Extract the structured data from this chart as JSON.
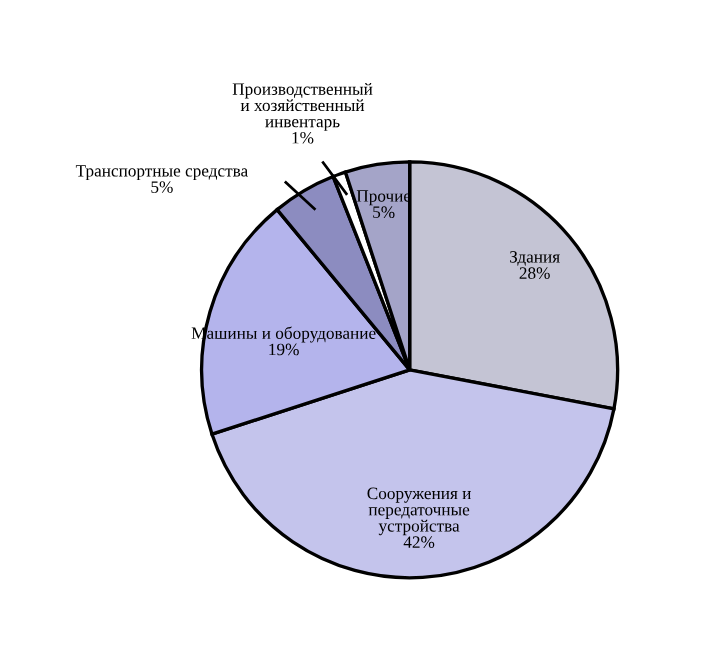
{
  "chart_data": {
    "type": "pie",
    "categories": [
      "Здания",
      "Сооружения и\nпередаточные\nустройства",
      "Машины и оборудование",
      "Транспортные средства",
      "Производственный\nи хозяйственный\nинвентарь",
      "Прочие"
    ],
    "values": [
      28,
      42,
      19,
      5,
      1,
      5
    ],
    "value_labels": [
      "28%",
      "42%",
      "19%",
      "5%",
      "1%",
      "5%"
    ],
    "colors": [
      "#c4c4d4",
      "#c4c4ec",
      "#b4b4ec",
      "#8c8cc0",
      "#ffffff",
      "#a4a4c8"
    ],
    "legend": false
  }
}
